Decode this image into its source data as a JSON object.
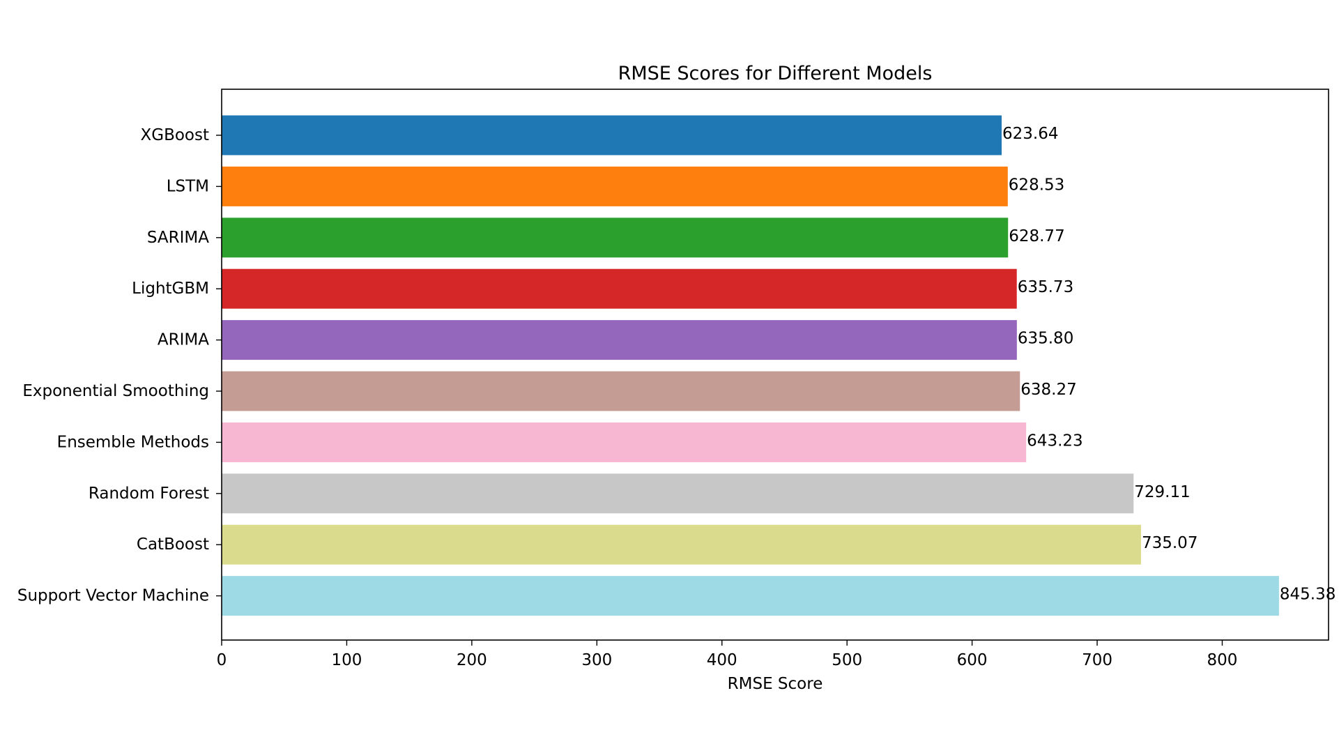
{
  "chart_data": {
    "type": "bar",
    "orientation": "horizontal",
    "title": "RMSE Scores for Different Models",
    "xlabel": "RMSE Score",
    "ylabel": "",
    "xlim": [
      0,
      885
    ],
    "xticks": [
      0,
      100,
      200,
      300,
      400,
      500,
      600,
      700,
      800
    ],
    "grid": false,
    "legend": "none",
    "categories": [
      "XGBoost",
      "LSTM",
      "SARIMA",
      "LightGBM",
      "ARIMA",
      "Exponential Smoothing",
      "Ensemble Methods",
      "Random Forest",
      "CatBoost",
      "Support Vector Machine"
    ],
    "values": [
      623.64,
      628.53,
      628.77,
      635.73,
      635.8,
      638.27,
      643.23,
      729.11,
      735.07,
      845.38
    ],
    "value_labels": [
      "623.64",
      "628.53",
      "628.77",
      "635.73",
      "635.80",
      "638.27",
      "643.23",
      "729.11",
      "735.07",
      "845.38"
    ],
    "colors": [
      "#1f77b4",
      "#ff7f0e",
      "#2ca02c",
      "#d62728",
      "#9467bd",
      "#c49c94",
      "#f7b6d2",
      "#c7c7c7",
      "#dbdb8d",
      "#9edae5"
    ]
  }
}
